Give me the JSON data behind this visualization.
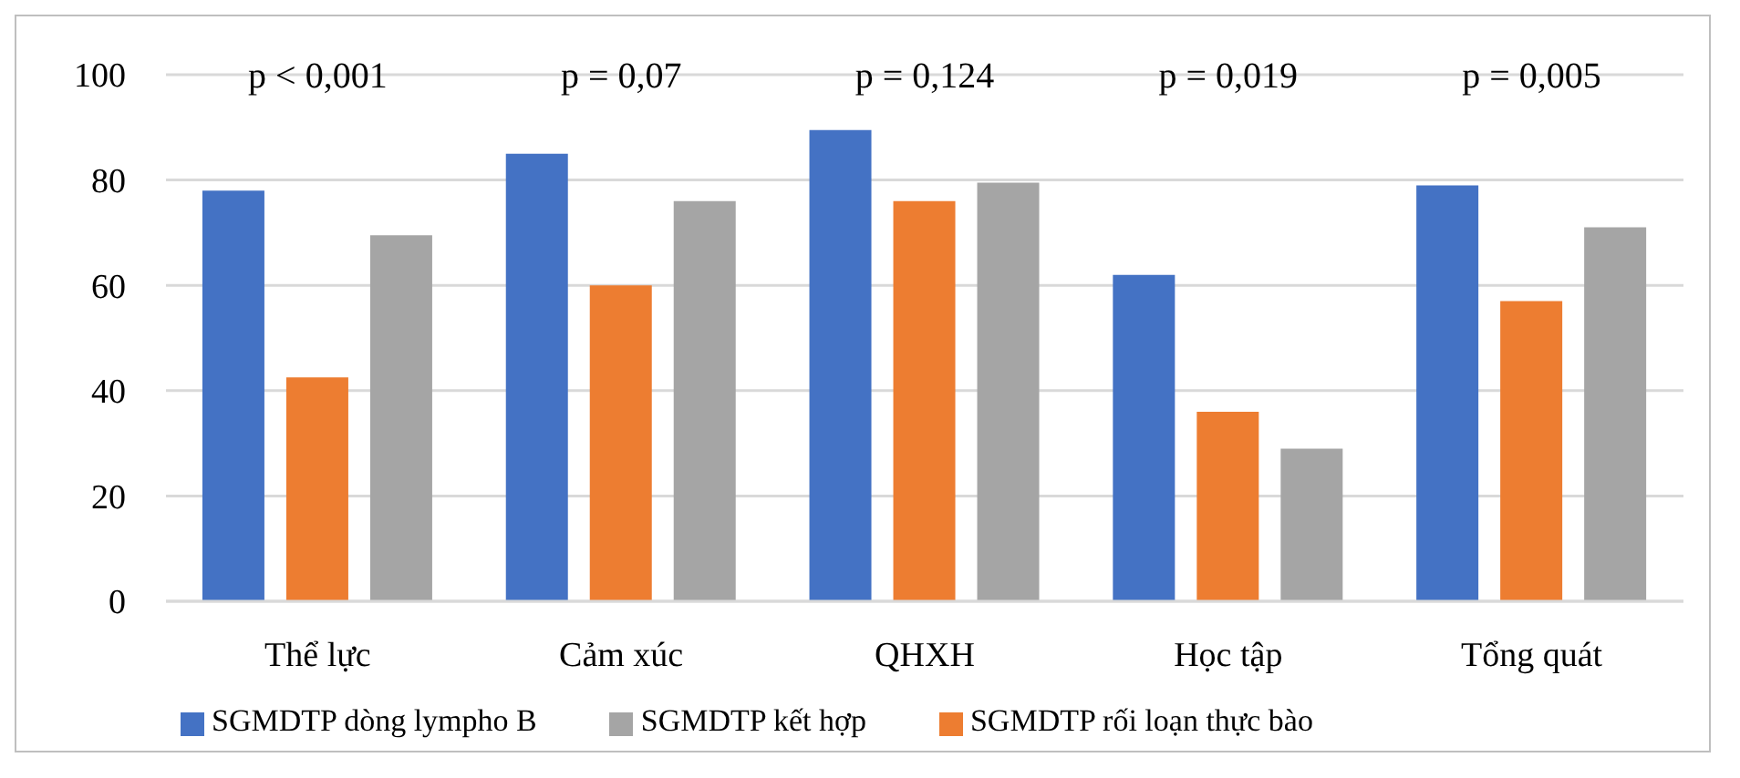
{
  "chart_data": {
    "type": "bar",
    "categories": [
      "Thể lực",
      "Cảm xúc",
      "QHXH",
      "Học tập",
      "Tổng quát"
    ],
    "series": [
      {
        "name": "SGMDTP dòng lympho B",
        "color": "#4472c4",
        "values": [
          78,
          85,
          89.5,
          62,
          79
        ]
      },
      {
        "name": "SGMDTP rối loạn thực bào",
        "color": "#ed7d31",
        "values": [
          42.5,
          60,
          76,
          36,
          57
        ]
      },
      {
        "name": "SGMDTP kết hợp",
        "color": "#a5a5a5",
        "values": [
          69.5,
          76,
          79.5,
          29,
          71
        ]
      }
    ],
    "ylim": [
      0,
      100
    ],
    "yticks": [
      0,
      20,
      40,
      60,
      80,
      100
    ],
    "grid": "y",
    "legend": "bottom left",
    "annotations": [
      "p < 0,001",
      "p = 0,07",
      "p = 0,124",
      "p = 0,019",
      "p = 0,005"
    ]
  }
}
